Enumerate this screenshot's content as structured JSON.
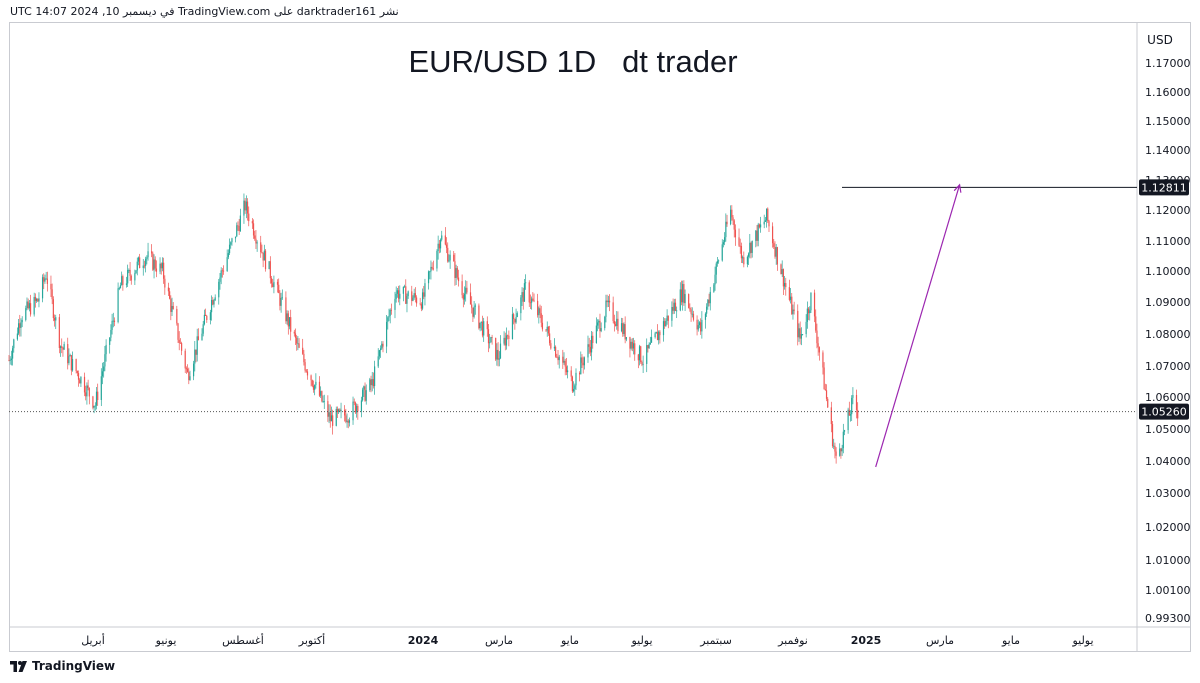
{
  "header": {
    "publish_line": "نشر darktrader161 على TradingView.com في ديسمبر 10, 2024 14:07 UTC"
  },
  "footer": {
    "logo_text": "TradingView",
    "logo_icon": "tradingview-logo-icon"
  },
  "colors": {
    "up": "#26a69a",
    "down": "#ef5350",
    "arrow": "#9c27b0",
    "level_line": "#131722",
    "dotted_line": "#555555"
  },
  "chart_data": {
    "type": "candlestick",
    "title": "EUR/USD 1D   dt trader",
    "currency": "USD",
    "y_ticks": [
      "1.17000",
      "1.16000",
      "1.15000",
      "1.14000",
      "1.13000",
      "1.12000",
      "1.11000",
      "1.10000",
      "1.09000",
      "1.08000",
      "1.07000",
      "1.06000",
      "1.05000",
      "1.04000",
      "1.03000",
      "1.02000",
      "1.01000",
      "1.00100",
      "0.99300"
    ],
    "x_ticks": [
      "أبريل",
      "يونيو",
      "أغسطس",
      "أكتوبر",
      "2024",
      "مارس",
      "مايو",
      "يوليو",
      "سبتمبر",
      "نوفمبر",
      "2025",
      "مارس",
      "مايو",
      "يوليو"
    ],
    "x_ticks_bold": [
      "2024",
      "2025"
    ],
    "current_price_label": "1.05260",
    "target_price_label": "1.12811",
    "current_price": 1.0526,
    "target_price": 1.12811,
    "arrow": {
      "start_price": 1.034,
      "end_price": 1.129,
      "start_date": "2024-12-25",
      "end_date": "2025-03-05"
    },
    "x_range": [
      "2023-01-02",
      "2025-07-31"
    ],
    "price_path": [
      {
        "date": "2023-01-02",
        "price": 1.07
      },
      {
        "date": "2023-01-12",
        "price": 1.085
      },
      {
        "date": "2023-01-26",
        "price": 1.09
      },
      {
        "date": "2023-02-02",
        "price": 1.099
      },
      {
        "date": "2023-02-14",
        "price": 1.075
      },
      {
        "date": "2023-03-01",
        "price": 1.065
      },
      {
        "date": "2023-03-15",
        "price": 1.055
      },
      {
        "date": "2023-04-05",
        "price": 1.095
      },
      {
        "date": "2023-04-26",
        "price": 1.105
      },
      {
        "date": "2023-05-10",
        "price": 1.1
      },
      {
        "date": "2023-05-31",
        "price": 1.065
      },
      {
        "date": "2023-06-20",
        "price": 1.09
      },
      {
        "date": "2023-07-18",
        "price": 1.122
      },
      {
        "date": "2023-08-10",
        "price": 1.097
      },
      {
        "date": "2023-09-01",
        "price": 1.073
      },
      {
        "date": "2023-09-27",
        "price": 1.05
      },
      {
        "date": "2023-10-13",
        "price": 1.052
      },
      {
        "date": "2023-11-01",
        "price": 1.062
      },
      {
        "date": "2023-11-20",
        "price": 1.093
      },
      {
        "date": "2023-12-13",
        "price": 1.09
      },
      {
        "date": "2023-12-28",
        "price": 1.112
      },
      {
        "date": "2024-01-15",
        "price": 1.094
      },
      {
        "date": "2024-02-14",
        "price": 1.071
      },
      {
        "date": "2024-03-08",
        "price": 1.094
      },
      {
        "date": "2024-04-16",
        "price": 1.062
      },
      {
        "date": "2024-05-15",
        "price": 1.088
      },
      {
        "date": "2024-06-14",
        "price": 1.07
      },
      {
        "date": "2024-07-17",
        "price": 1.093
      },
      {
        "date": "2024-08-01",
        "price": 1.08
      },
      {
        "date": "2024-08-26",
        "price": 1.12
      },
      {
        "date": "2024-09-05",
        "price": 1.104
      },
      {
        "date": "2024-09-25",
        "price": 1.118
      },
      {
        "date": "2024-10-23",
        "price": 1.077
      },
      {
        "date": "2024-11-01",
        "price": 1.091
      },
      {
        "date": "2024-11-22",
        "price": 1.036
      },
      {
        "date": "2024-12-06",
        "price": 1.056
      },
      {
        "date": "2024-12-10",
        "price": 1.0526
      }
    ]
  }
}
